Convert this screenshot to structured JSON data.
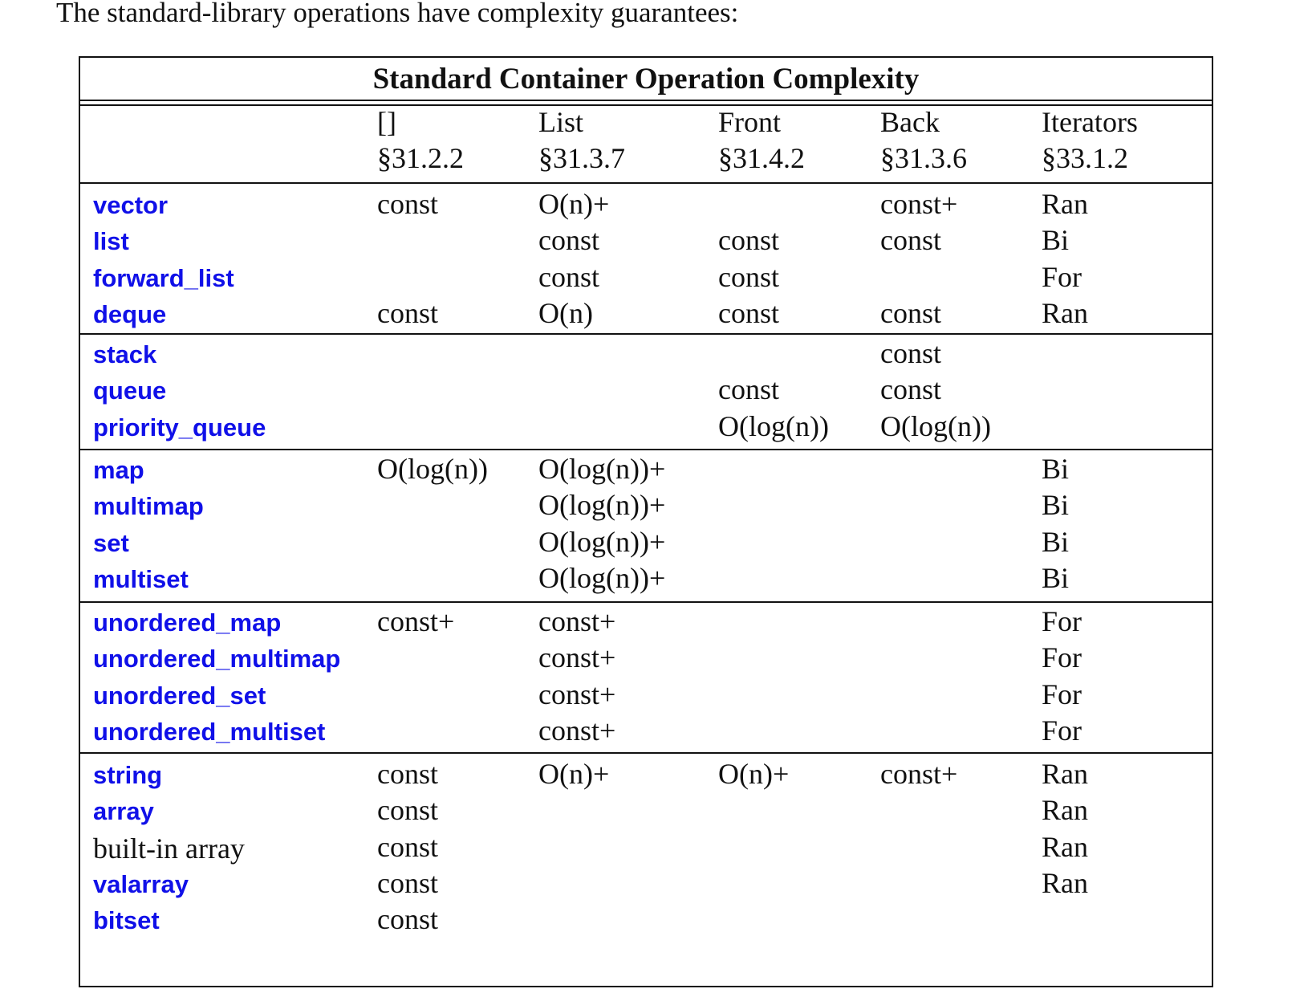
{
  "intro": "The standard-library operations have complexity guarantees:",
  "table": {
    "title": "Standard Container Operation Complexity",
    "link_color": "#1010e8",
    "columns": [
      {
        "label": "[]",
        "section": "§31.2.2"
      },
      {
        "label": "List",
        "section": "§31.3.7"
      },
      {
        "label": "Front",
        "section": "§31.4.2"
      },
      {
        "label": "Back",
        "section": "§31.3.6"
      },
      {
        "label": "Iterators",
        "section": "§33.1.2"
      }
    ],
    "groups": [
      {
        "rows": [
          {
            "name": "vector",
            "link": true,
            "cells": [
              "const",
              "O(n)+",
              "",
              "const+",
              "Ran"
            ]
          },
          {
            "name": "list",
            "link": true,
            "cells": [
              "",
              "const",
              "const",
              "const",
              "Bi"
            ]
          },
          {
            "name": "forward_list",
            "link": true,
            "cells": [
              "",
              "const",
              "const",
              "",
              "For"
            ]
          },
          {
            "name": "deque",
            "link": true,
            "cells": [
              "const",
              "O(n)",
              "const",
              "const",
              "Ran"
            ]
          }
        ]
      },
      {
        "rows": [
          {
            "name": "stack",
            "link": true,
            "cells": [
              "",
              "",
              "",
              "const",
              ""
            ]
          },
          {
            "name": "queue",
            "link": true,
            "cells": [
              "",
              "",
              "const",
              "const",
              ""
            ]
          },
          {
            "name": "priority_queue",
            "link": true,
            "cells": [
              "",
              "",
              "O(log(n))",
              "O(log(n))",
              ""
            ]
          }
        ]
      },
      {
        "rows": [
          {
            "name": "map",
            "link": true,
            "cells": [
              "O(log(n))",
              "O(log(n))+",
              "",
              "",
              "Bi"
            ]
          },
          {
            "name": "multimap",
            "link": true,
            "cells": [
              "",
              "O(log(n))+",
              "",
              "",
              "Bi"
            ]
          },
          {
            "name": "set",
            "link": true,
            "cells": [
              "",
              "O(log(n))+",
              "",
              "",
              "Bi"
            ]
          },
          {
            "name": "multiset",
            "link": true,
            "cells": [
              "",
              "O(log(n))+",
              "",
              "",
              "Bi"
            ]
          }
        ]
      },
      {
        "rows": [
          {
            "name": "unordered_map",
            "link": true,
            "cells": [
              "const+",
              "const+",
              "",
              "",
              "For"
            ]
          },
          {
            "name": "unordered_multimap",
            "link": true,
            "cells": [
              "",
              "const+",
              "",
              "",
              "For"
            ]
          },
          {
            "name": "unordered_set",
            "link": true,
            "cells": [
              "",
              "const+",
              "",
              "",
              "For"
            ]
          },
          {
            "name": "unordered_multiset",
            "link": true,
            "cells": [
              "",
              "const+",
              "",
              "",
              "For"
            ]
          }
        ]
      },
      {
        "rows": [
          {
            "name": "string",
            "link": true,
            "cells": [
              "const",
              "O(n)+",
              "O(n)+",
              "const+",
              "Ran"
            ]
          },
          {
            "name": "array",
            "link": true,
            "cells": [
              "const",
              "",
              "",
              "",
              "Ran"
            ]
          },
          {
            "name": "built-in array",
            "link": false,
            "cells": [
              "const",
              "",
              "",
              "",
              "Ran"
            ]
          },
          {
            "name": "valarray",
            "link": true,
            "cells": [
              "const",
              "",
              "",
              "",
              "Ran"
            ]
          },
          {
            "name": "bitset",
            "link": true,
            "cells": [
              "const",
              "",
              "",
              "",
              ""
            ]
          }
        ]
      }
    ]
  }
}
